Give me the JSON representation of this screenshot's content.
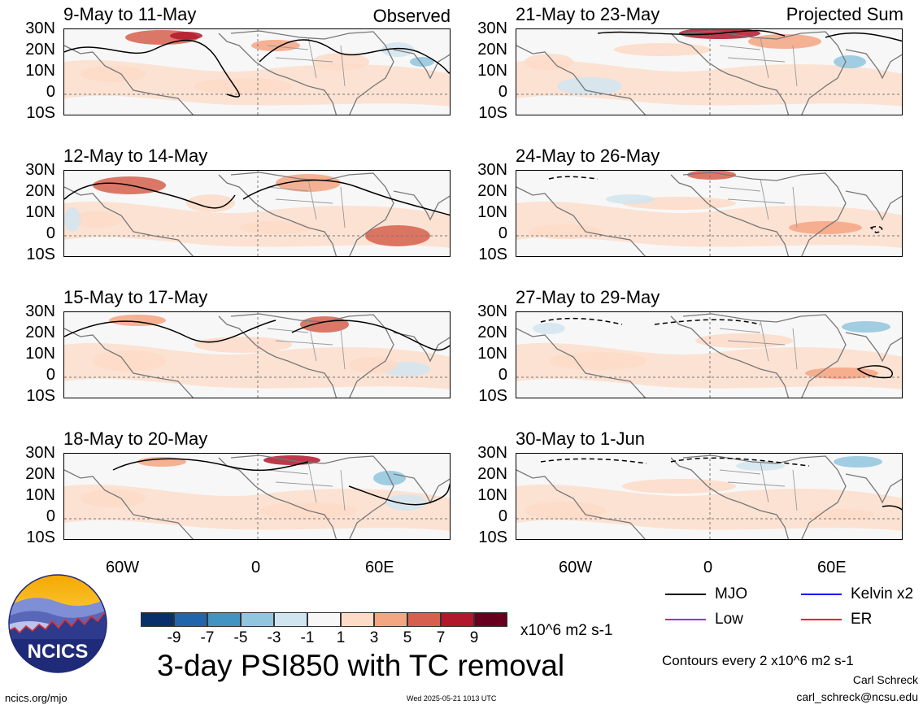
{
  "panels": {
    "observed_label": "Observed",
    "projected_label": "Projected Sum",
    "left": [
      {
        "title": "9-May to 11-May"
      },
      {
        "title": "12-May to 14-May"
      },
      {
        "title": "15-May to 17-May"
      },
      {
        "title": "18-May to 20-May"
      }
    ],
    "right": [
      {
        "title": "21-May to 23-May"
      },
      {
        "title": "24-May to 26-May"
      },
      {
        "title": "27-May to 29-May"
      },
      {
        "title": "30-May to 1-Jun"
      }
    ]
  },
  "axes": {
    "lat_labels": [
      "30N",
      "20N",
      "10N",
      "0",
      "10S"
    ],
    "lon_labels": [
      "60W",
      "0",
      "60E"
    ]
  },
  "colorbar": {
    "colors": [
      "#08306b",
      "#2166ac",
      "#4393c3",
      "#92c5de",
      "#d1e5f0",
      "#f7f7f7",
      "#fddbc7",
      "#f4a582",
      "#d6604d",
      "#b2182b",
      "#67001f"
    ],
    "labels": [
      "-9",
      "-7",
      "-5",
      "-3",
      "-1",
      "1",
      "3",
      "5",
      "7",
      "9"
    ],
    "units": "x10^6 m2 s-1"
  },
  "title": "3-day PSI850 with TC removal",
  "legend": {
    "mjo": {
      "label": "MJO",
      "color": "#000000"
    },
    "kelvin": {
      "label": "Kelvin x2",
      "color": "#0000ff"
    },
    "low": {
      "label": "Low",
      "color": "#9933cc"
    },
    "er": {
      "label": "ER",
      "color": "#ff0000"
    },
    "contours_note": "Contours every 2 x10^6 m2 s-1"
  },
  "credits": {
    "author": "Carl Schreck",
    "email": "carl_schreck@ncsu.edu",
    "url": "ncics.org/mjo",
    "timestamp": "Wed 2025-05-21 1013 UTC",
    "logo_text": "NCICS"
  }
}
